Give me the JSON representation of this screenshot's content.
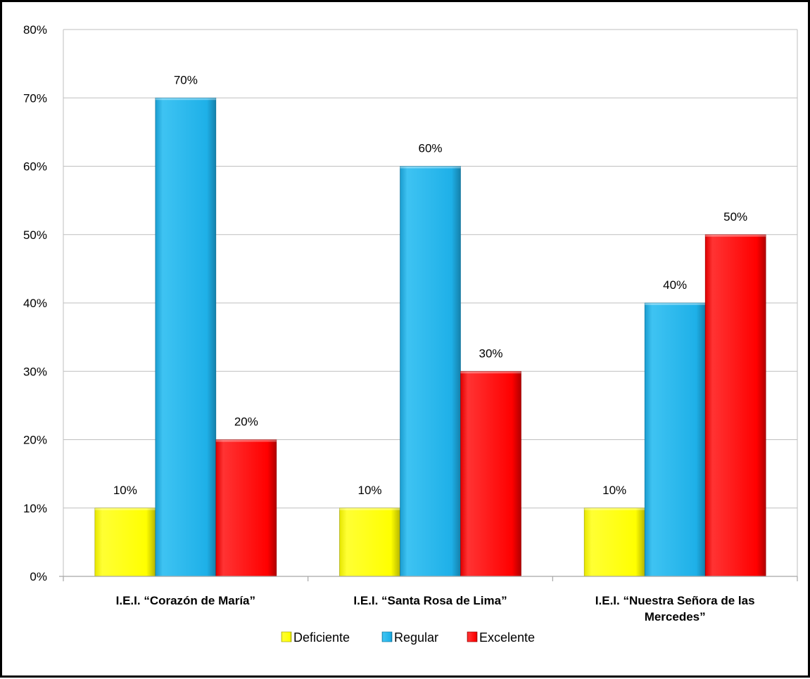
{
  "chart_data": {
    "type": "bar",
    "title": "",
    "xlabel": "",
    "ylabel": "",
    "categories": [
      [
        "I.E.I. “Corazón de María”"
      ],
      [
        "I.E.I. “Santa Rosa de Lima”"
      ],
      [
        "I.E.I. “Nuestra Señora de las",
        "Mercedes”"
      ]
    ],
    "series": [
      {
        "name": "Deficiente",
        "values": [
          10,
          10,
          10
        ],
        "labels": [
          "10%",
          "10%",
          "10%"
        ],
        "color": "#FFFF00"
      },
      {
        "name": "Regular",
        "values": [
          70,
          60,
          40
        ],
        "labels": [
          "70%",
          "60%",
          "40%"
        ],
        "color": "#1EB0E8"
      },
      {
        "name": "Excelente",
        "values": [
          20,
          30,
          50
        ],
        "labels": [
          "20%",
          "30%",
          "50%"
        ],
        "color": "#FF0000"
      }
    ],
    "ylim": [
      0,
      80
    ],
    "yticks": [
      0,
      10,
      20,
      30,
      40,
      50,
      60,
      70,
      80
    ],
    "ytick_labels": [
      "0%",
      "10%",
      "20%",
      "30%",
      "40%",
      "50%",
      "60%",
      "70%",
      "80%"
    ],
    "grid": true,
    "legend": "bottom"
  }
}
